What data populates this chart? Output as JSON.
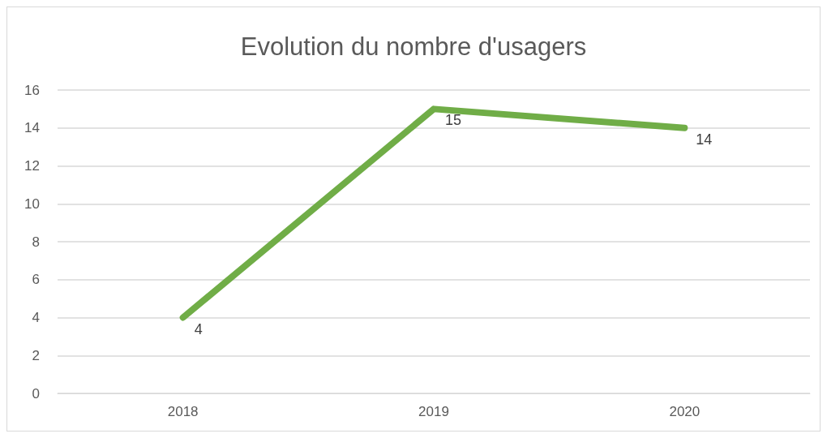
{
  "chart_data": {
    "type": "line",
    "title": "Evolution du nombre d'usagers",
    "categories": [
      "2018",
      "2019",
      "2020"
    ],
    "series": [
      {
        "color": "#70ad47",
        "values": [
          4,
          15,
          14
        ]
      }
    ],
    "ylim": [
      0,
      16
    ],
    "yticks": [
      0,
      2,
      4,
      6,
      8,
      10,
      12,
      14,
      16
    ],
    "grid": "y",
    "data_labels": true,
    "marker": "none",
    "line_style": "solid"
  }
}
